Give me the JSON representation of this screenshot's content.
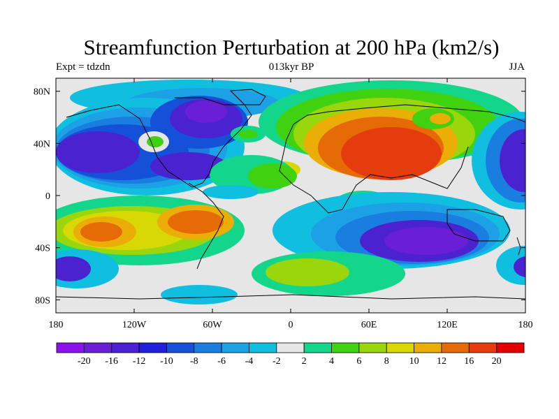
{
  "title": "Streamfunction Perturbation at 200 hPa (km2/s)",
  "left_subtitle": "Expt = tdzdn",
  "center_subtitle": "013kyr BP",
  "right_subtitle": "JJA",
  "lon_ticks": [
    {
      "lon": -180,
      "label": "180"
    },
    {
      "lon": -120,
      "label": "120W"
    },
    {
      "lon": -60,
      "label": "60W"
    },
    {
      "lon": 0,
      "label": "0"
    },
    {
      "lon": 60,
      "label": "60E"
    },
    {
      "lon": 120,
      "label": "120E"
    },
    {
      "lon": 180,
      "label": "180"
    }
  ],
  "lat_ticks": [
    {
      "lat": 80,
      "label": "80N"
    },
    {
      "lat": 40,
      "label": "40N"
    },
    {
      "lat": 0,
      "label": "0"
    },
    {
      "lat": -40,
      "label": "40S"
    },
    {
      "lat": -80,
      "label": "80S"
    }
  ],
  "lat_range": [
    -90,
    90
  ],
  "lon_range": [
    -180,
    180
  ],
  "colorbar": {
    "labels": [
      "-20",
      "-16",
      "-12",
      "-10",
      "-8",
      "-6",
      "-4",
      "-2",
      "2",
      "4",
      "6",
      "8",
      "10",
      "12",
      "16",
      "20"
    ],
    "colors": [
      "#8b12e8",
      "#6a1fd6",
      "#4a22cf",
      "#2020d8",
      "#1450d8",
      "#1a7ee0",
      "#1ca0e6",
      "#10bee0",
      "#e6e6e6",
      "#14d68a",
      "#40d210",
      "#9ad60c",
      "#d8d806",
      "#eaae06",
      "#e66a06",
      "#e43c0c",
      "#e20000"
    ]
  },
  "field_colors": {
    "background": "#e6e6e6",
    "n2": "#10bee0",
    "n4": "#1ca0e6",
    "n6": "#1a7ee0",
    "n8": "#1450d8",
    "n10": "#2020d8",
    "n12": "#4a22cf",
    "n16": "#6a1fd6",
    "p2": "#14d68a",
    "p4": "#40d210",
    "p6": "#9ad60c",
    "p8": "#d8d806",
    "p10": "#eaae06",
    "p12": "#e66a06",
    "p16": "#e43c0c"
  }
}
